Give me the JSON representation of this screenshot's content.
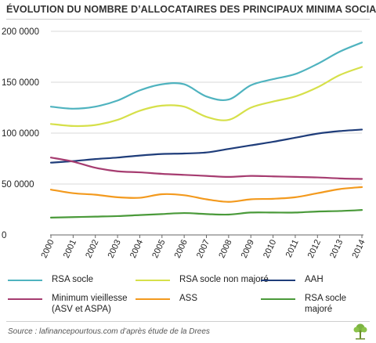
{
  "title": "ÉVOLUTION DU NOMBRE D’ALLOCATAIRES DES PRINCIPAUX MINIMA SOCIAUX",
  "source": "Source : lafinancepourtous.com d’après étude de la Drees",
  "chart_data": {
    "type": "line",
    "title": "ÉVOLUTION DU NOMBRE D’ALLOCATAIRES DES PRINCIPAUX MINIMA SOCIAUX",
    "xlabel": "",
    "ylabel": "",
    "ylim": [
      0,
      200000
    ],
    "y_ticks": [
      0,
      50000,
      100000,
      150000,
      200000
    ],
    "y_tick_labels": [
      "0",
      "50 0000",
      "100 0000",
      "150 0000",
      "200 0000"
    ],
    "x": [
      "2000",
      "2001",
      "2002",
      "2003",
      "2004",
      "2005",
      "2006",
      "2007",
      "2008",
      "2009",
      "2010",
      "2011",
      "2012",
      "2013",
      "2014"
    ],
    "grid": "horizontal",
    "legend_position": "bottom",
    "series": [
      {
        "name": "RSA socle",
        "color": "#4fb3bf",
        "values": [
          126000,
          124000,
          126000,
          132000,
          142000,
          148000,
          148000,
          136000,
          133000,
          147000,
          153000,
          158000,
          168000,
          180000,
          189000
        ]
      },
      {
        "name": "RSA socle non majoré",
        "color": "#d6e04a",
        "values": [
          109000,
          107000,
          108000,
          113000,
          122000,
          127000,
          126000,
          116000,
          113000,
          125000,
          131000,
          136000,
          145000,
          157000,
          165000
        ]
      },
      {
        "name": "AAH",
        "color": "#1f3d7a",
        "values": [
          71000,
          72500,
          74500,
          76000,
          78000,
          79500,
          80000,
          81000,
          84500,
          88000,
          91500,
          95500,
          99500,
          102000,
          103500
        ]
      },
      {
        "name": "Minimum vieillesse\n(ASV et ASPA)",
        "color": "#a63c70",
        "values": [
          76000,
          72000,
          66000,
          62500,
          61500,
          60000,
          59000,
          58000,
          57000,
          58000,
          57500,
          57000,
          56500,
          55500,
          55000
        ]
      },
      {
        "name": "ASS",
        "color": "#f39a1e",
        "values": [
          44500,
          41000,
          39500,
          37000,
          36500,
          40000,
          39000,
          35000,
          32500,
          35000,
          35500,
          37000,
          41000,
          45000,
          47000
        ]
      },
      {
        "name": "RSA socle majoré",
        "color": "#4a9a3a",
        "values": [
          17000,
          17500,
          18000,
          18500,
          19500,
          20500,
          21500,
          20500,
          20000,
          22000,
          22000,
          22000,
          23000,
          23500,
          24500
        ]
      }
    ]
  }
}
